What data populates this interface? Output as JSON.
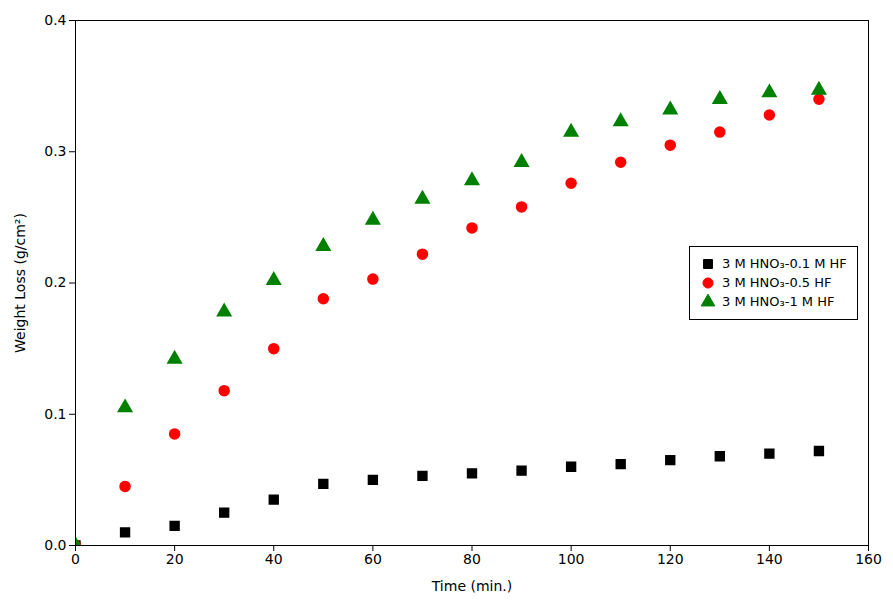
{
  "chart_data": {
    "type": "scatter",
    "xlabel": "Time (min.)",
    "ylabel": "Weight Loss (g/cm²)",
    "x": [
      0,
      10,
      20,
      30,
      40,
      50,
      60,
      70,
      80,
      90,
      100,
      110,
      120,
      130,
      140,
      150
    ],
    "series": [
      {
        "name": "3 M HNO₃-0.1 M HF",
        "color": "black",
        "marker": "square",
        "values": [
          0.0,
          0.01,
          0.015,
          0.025,
          0.035,
          0.047,
          0.05,
          0.053,
          0.055,
          0.057,
          0.06,
          0.062,
          0.065,
          0.068,
          0.07,
          0.072
        ]
      },
      {
        "name": "3 M HNO₃-0.5 HF",
        "color": "red",
        "marker": "circle",
        "values": [
          0.0,
          0.045,
          0.085,
          0.118,
          0.15,
          0.188,
          0.203,
          0.222,
          0.242,
          0.258,
          0.276,
          0.292,
          0.305,
          0.315,
          0.328,
          0.34
        ]
      },
      {
        "name": "3 M HNO₃-1 M HF",
        "color": "green",
        "marker": "triangle",
        "values": [
          0.0,
          0.105,
          0.142,
          0.178,
          0.202,
          0.228,
          0.248,
          0.264,
          0.278,
          0.292,
          0.315,
          0.323,
          0.332,
          0.34,
          0.345,
          0.347
        ]
      }
    ],
    "xlim": [
      0,
      160
    ],
    "ylim": [
      0,
      0.4
    ],
    "xticks": [
      0,
      20,
      40,
      60,
      80,
      100,
      120,
      140,
      160
    ],
    "yticks": [
      {
        "value": 0,
        "label": "0.0"
      },
      0.1,
      0.2,
      0.3,
      0.4
    ],
    "grid": false,
    "legend": "center right"
  }
}
